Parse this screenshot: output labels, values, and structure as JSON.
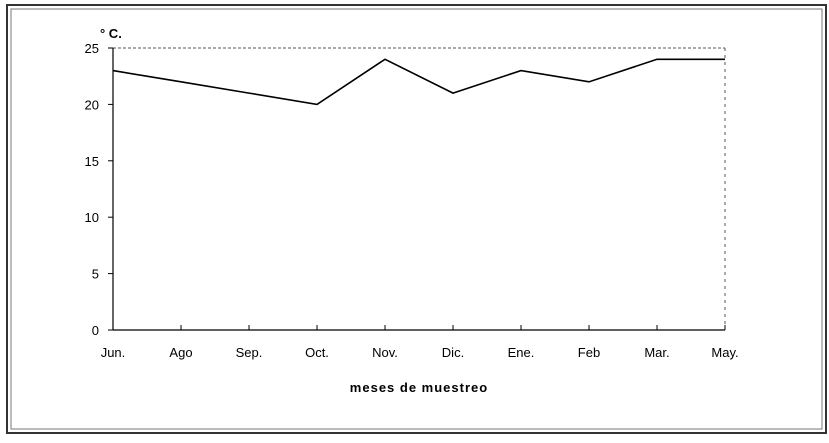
{
  "chart_data": {
    "type": "line",
    "y_label": "° C.",
    "x_label": "meses de muestreo",
    "categories": [
      "Jun.",
      "Ago",
      "Sep.",
      "Oct.",
      "Nov.",
      "Dic.",
      "Ene.",
      "Feb",
      "Mar.",
      "May."
    ],
    "series": [
      {
        "color": "#000000",
        "values": [
          23,
          22,
          21,
          20,
          24,
          21,
          23,
          22,
          24,
          24
        ]
      }
    ],
    "ylim": [
      0,
      25
    ],
    "yticks": [
      0,
      5,
      10,
      15,
      20,
      25
    ]
  }
}
